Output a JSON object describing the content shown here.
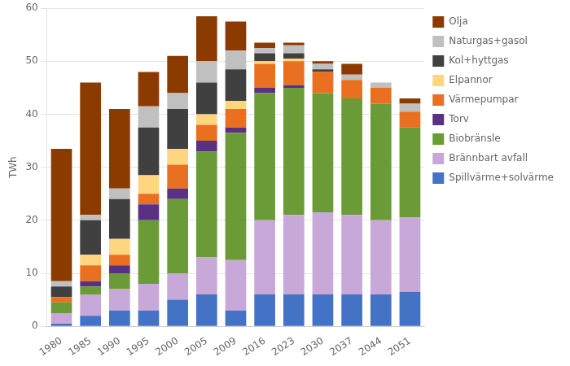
{
  "chart_data": {
    "type": "bar",
    "stacked": true,
    "y_label": "TWh",
    "categories": [
      "1980",
      "1985",
      "1990",
      "1995",
      "2000",
      "2005",
      "2009",
      "2016",
      "2023",
      "2030",
      "2037",
      "2044",
      "2051"
    ],
    "series": [
      {
        "name": "Spillvärme+solvärme",
        "color": "#4472C4",
        "values": [
          0.5,
          2.0,
          3.0,
          3.0,
          5.0,
          6.0,
          3.0,
          6.0,
          6.0,
          6.0,
          6.0,
          6.0,
          6.5
        ]
      },
      {
        "name": "Brännbart avfall",
        "color": "#C8A8D8",
        "values": [
          2.0,
          4.0,
          4.0,
          5.0,
          5.0,
          7.0,
          9.5,
          14.0,
          15.0,
          15.5,
          15.0,
          14.0,
          14.0
        ]
      },
      {
        "name": "Biobränsle",
        "color": "#6B9B37",
        "values": [
          2.0,
          1.5,
          3.0,
          12.0,
          14.0,
          20.0,
          24.0,
          24.0,
          24.0,
          22.5,
          22.0,
          22.0,
          17.0
        ]
      },
      {
        "name": "Torv",
        "color": "#5A3085",
        "values": [
          0.0,
          1.0,
          1.5,
          3.0,
          2.0,
          2.0,
          1.0,
          1.0,
          0.5,
          0.0,
          0.0,
          0.0,
          0.0
        ]
      },
      {
        "name": "Värmepumpar",
        "color": "#E87020",
        "values": [
          1.0,
          3.0,
          2.0,
          2.0,
          4.5,
          3.0,
          3.5,
          4.5,
          4.5,
          4.0,
          3.5,
          3.0,
          3.0
        ]
      },
      {
        "name": "Elpannor",
        "color": "#FFD580",
        "values": [
          0.0,
          2.0,
          3.0,
          3.5,
          3.0,
          2.0,
          1.5,
          0.5,
          0.5,
          0.0,
          0.0,
          0.0,
          0.0
        ]
      },
      {
        "name": "Kol+hyttgas",
        "color": "#404040",
        "values": [
          2.0,
          6.5,
          7.5,
          9.0,
          7.5,
          6.0,
          6.0,
          1.5,
          1.0,
          0.5,
          0.0,
          0.0,
          0.0
        ]
      },
      {
        "name": "Naturgas+gasol",
        "color": "#C0C0C0",
        "values": [
          1.0,
          1.0,
          2.0,
          4.0,
          3.0,
          4.0,
          3.5,
          1.0,
          1.5,
          1.0,
          1.0,
          1.0,
          1.5
        ]
      },
      {
        "name": "Olja",
        "color": "#8B3A00",
        "values": [
          25.0,
          25.0,
          15.0,
          6.5,
          7.0,
          8.5,
          5.5,
          1.0,
          0.5,
          0.5,
          2.0,
          0.0,
          1.0
        ]
      }
    ],
    "ylim": [
      0,
      60
    ],
    "yticks": [
      0,
      10,
      20,
      30,
      40,
      50,
      60
    ],
    "grid": true,
    "legend": "right"
  }
}
